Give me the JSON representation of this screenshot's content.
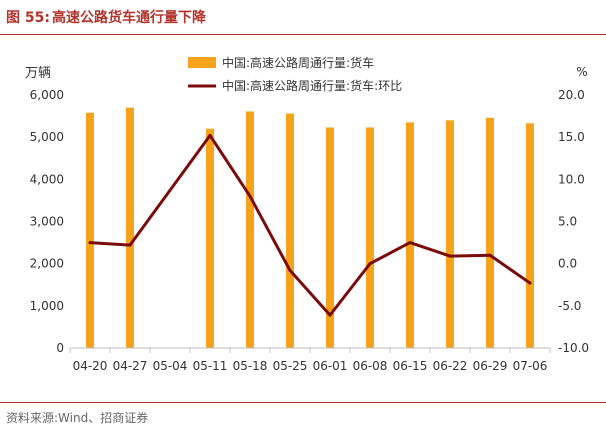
{
  "figure": {
    "label": "图 55:",
    "title": "高速公路货车通行量下降",
    "source": "资料来源:Wind、招商证券"
  },
  "chart_data": {
    "type": "bar",
    "categories": [
      "04-20",
      "04-27",
      "05-04",
      "05-11",
      "05-18",
      "05-25",
      "06-01",
      "06-08",
      "06-15",
      "06-22",
      "06-29",
      "07-06"
    ],
    "ylabel_left": "万辆",
    "ylabel_right": "%",
    "ylim_left": [
      0,
      6000
    ],
    "ylim_right": [
      -10,
      20
    ],
    "yticks_left": [
      "0",
      "1,000",
      "2,000",
      "3,000",
      "4,000",
      "5,000",
      "6,000"
    ],
    "yticks_right": [
      "-10.0",
      "-5.0",
      "0.0",
      "5.0",
      "10.0",
      "15.0",
      "20.0"
    ],
    "grid": false,
    "legend_position": "top",
    "series": [
      {
        "name": "中国:高速公路周通行量:货车",
        "type": "bar",
        "axis": "left",
        "color": "#f7a21b",
        "values": [
          5580,
          5700,
          null,
          5200,
          5610,
          5560,
          5230,
          5230,
          5350,
          5400,
          5460,
          5330
        ]
      },
      {
        "name": "中国:高速公路周通行量:货车:环比",
        "type": "line",
        "axis": "right",
        "color": "#7b0c0c",
        "values": [
          2.5,
          2.2,
          null,
          15.2,
          8.0,
          -0.8,
          -6.1,
          0.0,
          2.5,
          0.9,
          1.0,
          -2.3
        ]
      }
    ]
  }
}
